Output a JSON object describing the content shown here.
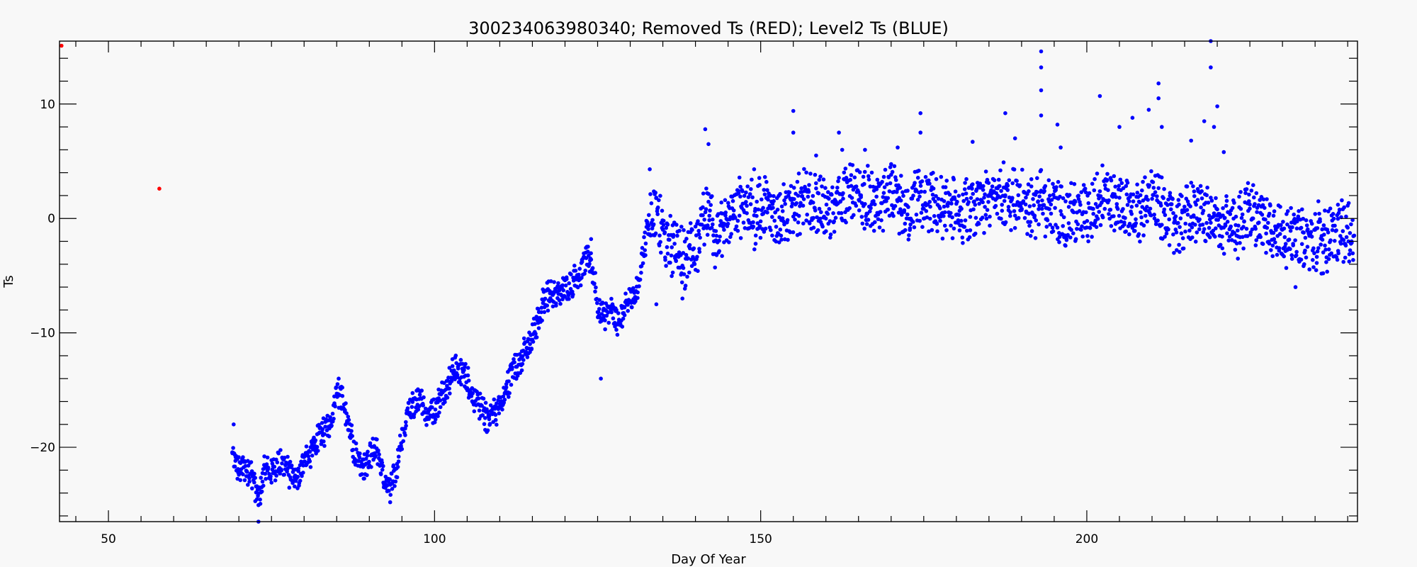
{
  "chart_data": {
    "type": "scatter",
    "title": "300234063980340; Removed Ts (RED); Level2 Ts (BLUE)",
    "xlabel": "Day Of Year",
    "ylabel": "Ts",
    "xlim": [
      42.5,
      241.5
    ],
    "ylim": [
      -26.5,
      15.5
    ],
    "x_ticks": [
      50,
      100,
      150,
      200
    ],
    "x_tick_labels": [
      "50",
      "100",
      "150",
      "200"
    ],
    "y_ticks": [
      -20,
      -10,
      0,
      10
    ],
    "y_tick_labels": [
      "−20",
      "−10",
      "0",
      "10"
    ],
    "grid": false,
    "series": [
      {
        "name": "Removed Ts",
        "color": "#ff0000",
        "points": [
          [
            42.8,
            15.1
          ],
          [
            57.8,
            2.6
          ]
        ]
      },
      {
        "name": "Level2 Ts",
        "color": "#0000ff",
        "trend": [
          [
            69,
            -20.8
          ],
          [
            70,
            -22.0
          ],
          [
            71,
            -21.8
          ],
          [
            72,
            -22.3
          ],
          [
            73,
            -24.5
          ],
          [
            74,
            -21.8
          ],
          [
            75,
            -22.4
          ],
          [
            76,
            -21.6
          ],
          [
            77,
            -21.4
          ],
          [
            78,
            -22.6
          ],
          [
            79,
            -23.2
          ],
          [
            80,
            -20.8
          ],
          [
            81,
            -20.5
          ],
          [
            82,
            -19.5
          ],
          [
            83,
            -18.8
          ],
          [
            84,
            -17.8
          ],
          [
            85,
            -14.8
          ],
          [
            86,
            -16.2
          ],
          [
            87,
            -18.8
          ],
          [
            88,
            -20.9
          ],
          [
            89,
            -21.6
          ],
          [
            90,
            -20.8
          ],
          [
            91,
            -19.9
          ],
          [
            92,
            -22.4
          ],
          [
            93,
            -23.5
          ],
          [
            94,
            -22.6
          ],
          [
            95,
            -19.5
          ],
          [
            96,
            -16.9
          ],
          [
            97,
            -16.3
          ],
          [
            98,
            -16.1
          ],
          [
            99,
            -17.0
          ],
          [
            100,
            -16.5
          ],
          [
            101,
            -15.5
          ],
          [
            102,
            -14.5
          ],
          [
            103,
            -13.2
          ],
          [
            104,
            -13.5
          ],
          [
            105,
            -14.0
          ],
          [
            106,
            -15.5
          ],
          [
            107,
            -16.5
          ],
          [
            108,
            -17.5
          ],
          [
            109,
            -17.0
          ],
          [
            110,
            -16.5
          ],
          [
            111,
            -15.0
          ],
          [
            112,
            -13.0
          ],
          [
            113,
            -12.5
          ],
          [
            114,
            -11.5
          ],
          [
            115,
            -10.5
          ],
          [
            116,
            -8.5
          ],
          [
            117,
            -6.8
          ],
          [
            118,
            -6.6
          ],
          [
            119,
            -6.8
          ],
          [
            120,
            -6.0
          ],
          [
            121,
            -5.6
          ],
          [
            122,
            -5.0
          ],
          [
            123,
            -4.0
          ],
          [
            124,
            -3.5
          ],
          [
            125,
            -7.5
          ],
          [
            126,
            -8.5
          ],
          [
            127,
            -8.0
          ],
          [
            128,
            -9.0
          ],
          [
            129,
            -8.2
          ],
          [
            130,
            -7.0
          ],
          [
            131,
            -6.5
          ],
          [
            132,
            -3.0
          ],
          [
            133,
            0.0
          ],
          [
            134,
            1.5
          ],
          [
            135,
            -2.0
          ],
          [
            136,
            -2.5
          ],
          [
            137,
            -2.0
          ],
          [
            138,
            -3.5
          ],
          [
            139,
            -3.0
          ],
          [
            140,
            -2.5
          ],
          [
            141,
            -1.0
          ],
          [
            142,
            1.5
          ],
          [
            143,
            -1.5
          ],
          [
            144,
            -1.0
          ],
          [
            145,
            -0.5
          ],
          [
            146,
            0.5
          ],
          [
            147,
            1.0
          ],
          [
            148,
            1.5
          ],
          [
            149,
            0.0
          ],
          [
            150,
            1.0
          ],
          [
            151,
            1.0
          ],
          [
            152,
            0.5
          ],
          [
            153,
            0.0
          ],
          [
            154,
            0.5
          ],
          [
            155,
            1.0
          ],
          [
            156,
            1.5
          ],
          [
            157,
            1.5
          ],
          [
            158,
            1.0
          ],
          [
            159,
            1.5
          ],
          [
            160,
            0.0
          ],
          [
            161,
            0.5
          ],
          [
            162,
            2.0
          ],
          [
            163,
            2.5
          ],
          [
            164,
            2.0
          ],
          [
            165,
            1.5
          ],
          [
            166,
            2.0
          ],
          [
            167,
            1.5
          ],
          [
            168,
            1.0
          ],
          [
            169,
            1.5
          ],
          [
            170,
            2.0
          ],
          [
            171,
            1.5
          ],
          [
            172,
            1.0
          ],
          [
            173,
            0.5
          ],
          [
            174,
            2.5
          ],
          [
            175,
            1.5
          ],
          [
            176,
            1.5
          ],
          [
            177,
            1.0
          ],
          [
            178,
            1.0
          ],
          [
            179,
            0.5
          ],
          [
            180,
            1.0
          ],
          [
            181,
            0.5
          ],
          [
            182,
            1.0
          ],
          [
            183,
            1.5
          ],
          [
            184,
            1.0
          ],
          [
            185,
            1.5
          ],
          [
            186,
            2.0
          ],
          [
            187,
            2.5
          ],
          [
            188,
            2.0
          ],
          [
            189,
            1.5
          ],
          [
            190,
            1.5
          ],
          [
            191,
            1.0
          ],
          [
            192,
            1.0
          ],
          [
            193,
            1.5
          ],
          [
            194,
            1.0
          ],
          [
            195,
            1.0
          ],
          [
            196,
            0.5
          ],
          [
            197,
            0.0
          ],
          [
            198,
            0.5
          ],
          [
            199,
            0.0
          ],
          [
            200,
            0.5
          ],
          [
            201,
            0.5
          ],
          [
            202,
            2.0
          ],
          [
            203,
            2.0
          ],
          [
            204,
            1.5
          ],
          [
            205,
            1.0
          ],
          [
            206,
            0.5
          ],
          [
            207,
            0.5
          ],
          [
            208,
            0.5
          ],
          [
            209,
            1.0
          ],
          [
            210,
            1.5
          ],
          [
            211,
            1.0
          ],
          [
            212,
            0.5
          ],
          [
            213,
            0.0
          ],
          [
            214,
            -0.5
          ],
          [
            215,
            0.0
          ],
          [
            216,
            0.5
          ],
          [
            217,
            0.5
          ],
          [
            218,
            0.5
          ],
          [
            219,
            0.0
          ],
          [
            220,
            -0.5
          ],
          [
            221,
            -0.5
          ],
          [
            222,
            -1.0
          ],
          [
            223,
            -1.0
          ],
          [
            224,
            0.0
          ],
          [
            225,
            0.5
          ],
          [
            226,
            0.5
          ],
          [
            227,
            0.0
          ],
          [
            228,
            -0.5
          ],
          [
            229,
            -1.0
          ],
          [
            230,
            -1.5
          ],
          [
            231,
            -1.5
          ],
          [
            232,
            -1.5
          ],
          [
            233,
            -2.0
          ],
          [
            234,
            -2.0
          ],
          [
            235,
            -2.0
          ],
          [
            236,
            -2.0
          ],
          [
            237,
            -2.0
          ],
          [
            238,
            -1.5
          ],
          [
            239,
            -1.0
          ],
          [
            240,
            -1.5
          ],
          [
            241,
            -1.5
          ]
        ],
        "spikes": [
          [
            69.2,
            -18.0
          ],
          [
            73.0,
            -26.5
          ],
          [
            85.3,
            -14.0
          ],
          [
            93.2,
            -24.8
          ],
          [
            124.0,
            -1.8
          ],
          [
            125.5,
            -14.0
          ],
          [
            133.0,
            4.3
          ],
          [
            134.0,
            -7.5
          ],
          [
            138.0,
            -7.0
          ],
          [
            141.5,
            7.8
          ],
          [
            142.0,
            6.5
          ],
          [
            149.0,
            4.3
          ],
          [
            155.0,
            9.4
          ],
          [
            155.0,
            7.5
          ],
          [
            158.5,
            5.5
          ],
          [
            162.0,
            7.5
          ],
          [
            162.5,
            6.0
          ],
          [
            166.0,
            6.0
          ],
          [
            171.0,
            6.2
          ],
          [
            174.5,
            9.2
          ],
          [
            174.5,
            7.5
          ],
          [
            182.5,
            6.7
          ],
          [
            187.5,
            9.2
          ],
          [
            189.0,
            7.0
          ],
          [
            193.0,
            14.6
          ],
          [
            193.0,
            13.2
          ],
          [
            193.0,
            11.2
          ],
          [
            193.0,
            9.0
          ],
          [
            195.5,
            8.2
          ],
          [
            196.0,
            6.2
          ],
          [
            202.0,
            10.7
          ],
          [
            205.0,
            8.0
          ],
          [
            207.0,
            8.8
          ],
          [
            209.5,
            9.5
          ],
          [
            211.0,
            11.8
          ],
          [
            211.0,
            10.5
          ],
          [
            211.5,
            8.0
          ],
          [
            216.0,
            6.8
          ],
          [
            218.0,
            8.5
          ],
          [
            219.0,
            15.5
          ],
          [
            219.0,
            13.2
          ],
          [
            220.0,
            9.8
          ],
          [
            219.5,
            8.0
          ],
          [
            221.0,
            5.8
          ],
          [
            232.0,
            -6.0
          ],
          [
            235.5,
            1.5
          ],
          [
            238.5,
            1.2
          ]
        ]
      }
    ]
  }
}
